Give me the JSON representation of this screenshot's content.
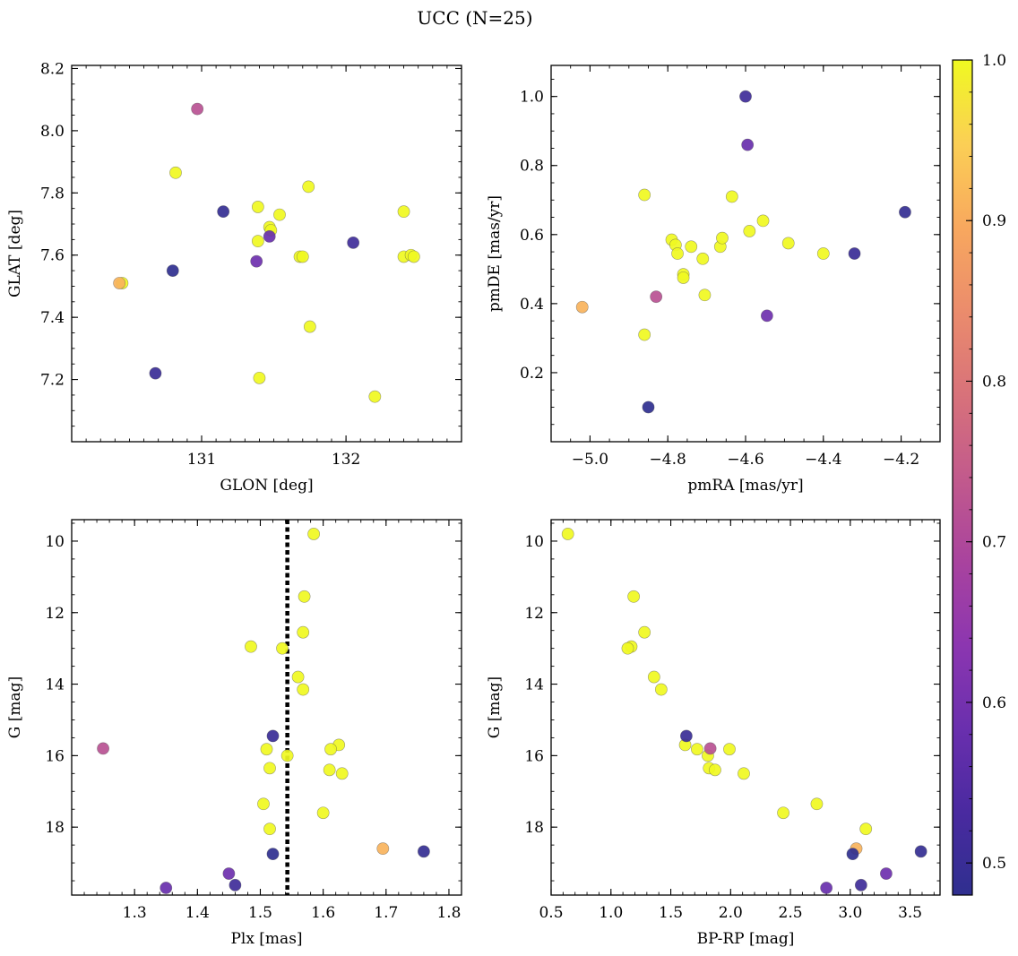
{
  "chart_data": {
    "type": "scatter",
    "title": "UCC (N=25)",
    "colorbar": {
      "colormap": "plasma",
      "range": [
        0.48,
        1.0
      ],
      "ticks": [
        0.5,
        0.6,
        0.7,
        0.8,
        0.9,
        1.0
      ],
      "tick_labels": [
        "0.5",
        "0.6",
        "0.7",
        "0.8",
        "0.9",
        "1.0"
      ]
    },
    "points": [
      {
        "glon": 130.97,
        "glat": 8.07,
        "pmra": -4.83,
        "pmde": 0.42,
        "plx": 1.25,
        "g": 15.8,
        "bprp": 1.83,
        "prob": 0.72
      },
      {
        "glon": 130.82,
        "glat": 7.865,
        "pmra": -4.86,
        "pmde": 0.715,
        "plx": 1.585,
        "g": 9.8,
        "bprp": 0.64,
        "prob": 1.0
      },
      {
        "glon": 131.15,
        "glat": 7.74,
        "pmra": -4.19,
        "pmde": 0.665,
        "plx": 1.76,
        "g": 18.68,
        "bprp": 3.59,
        "prob": 0.49
      },
      {
        "glon": 130.8,
        "glat": 7.55,
        "pmra": -4.85,
        "pmde": 0.1,
        "plx": 1.52,
        "g": 18.75,
        "bprp": 3.02,
        "prob": 0.48
      },
      {
        "glon": 130.68,
        "glat": 7.22,
        "pmra": -4.32,
        "pmde": 0.545,
        "plx": 1.52,
        "g": 15.45,
        "bprp": 1.63,
        "prob": 0.5
      },
      {
        "glon": 132.05,
        "glat": 7.64,
        "pmra": -4.6,
        "pmde": 1.0,
        "plx": 1.46,
        "g": 19.62,
        "bprp": 3.09,
        "prob": 0.51
      },
      {
        "glon": 131.47,
        "glat": 7.66,
        "pmra": -4.595,
        "pmde": 0.86,
        "plx": 1.35,
        "g": 19.7,
        "bprp": 2.8,
        "prob": 0.58
      },
      {
        "glon": 131.38,
        "glat": 7.58,
        "pmra": -4.545,
        "pmde": 0.365,
        "plx": 1.45,
        "g": 19.3,
        "bprp": 3.3,
        "prob": 0.59
      },
      {
        "glon": 130.43,
        "glat": 7.51,
        "pmra": -5.02,
        "pmde": 0.39,
        "plx": 1.695,
        "g": 18.6,
        "bprp": 3.05,
        "prob": 0.91
      },
      {
        "glon": 131.39,
        "glat": 7.755,
        "pmra": -4.79,
        "pmde": 0.585,
        "plx": 1.57,
        "g": 11.55,
        "bprp": 1.19,
        "prob": 1.0
      },
      {
        "glon": 131.47,
        "glat": 7.69,
        "pmra": -4.78,
        "pmde": 0.57,
        "plx": 1.485,
        "g": 12.95,
        "bprp": 1.17,
        "prob": 1.0
      },
      {
        "glon": 131.48,
        "glat": 7.68,
        "pmra": -4.775,
        "pmde": 0.545,
        "plx": 1.568,
        "g": 12.55,
        "bprp": 1.28,
        "prob": 1.0
      },
      {
        "glon": 131.54,
        "glat": 7.73,
        "pmra": -4.76,
        "pmde": 0.485,
        "plx": 1.535,
        "g": 13.0,
        "bprp": 1.14,
        "prob": 1.0
      },
      {
        "glon": 131.39,
        "glat": 7.645,
        "pmra": -4.76,
        "pmde": 0.475,
        "plx": 1.56,
        "g": 13.8,
        "bprp": 1.36,
        "prob": 1.0
      },
      {
        "glon": 131.74,
        "glat": 7.82,
        "pmra": -4.74,
        "pmde": 0.565,
        "plx": 1.568,
        "g": 14.15,
        "bprp": 1.42,
        "prob": 1.0
      },
      {
        "glon": 131.68,
        "glat": 7.595,
        "pmra": -4.71,
        "pmde": 0.53,
        "plx": 1.625,
        "g": 15.7,
        "bprp": 1.62,
        "prob": 1.0
      },
      {
        "glon": 131.7,
        "glat": 7.595,
        "pmra": -4.705,
        "pmde": 0.425,
        "plx": 1.612,
        "g": 15.82,
        "bprp": 1.72,
        "prob": 1.0
      },
      {
        "glon": 131.75,
        "glat": 7.37,
        "pmra": -4.665,
        "pmde": 0.565,
        "plx": 1.51,
        "g": 15.82,
        "bprp": 1.99,
        "prob": 1.0
      },
      {
        "glon": 131.4,
        "glat": 7.205,
        "pmra": -4.66,
        "pmde": 0.59,
        "plx": 1.543,
        "g": 16.0,
        "bprp": 1.81,
        "prob": 1.0
      },
      {
        "glon": 132.2,
        "glat": 7.145,
        "pmra": -4.635,
        "pmde": 0.71,
        "plx": 1.515,
        "g": 16.35,
        "bprp": 1.82,
        "prob": 1.0
      },
      {
        "glon": 132.4,
        "glat": 7.74,
        "pmra": -4.59,
        "pmde": 0.61,
        "plx": 1.61,
        "g": 16.4,
        "bprp": 1.87,
        "prob": 1.0
      },
      {
        "glon": 132.4,
        "glat": 7.595,
        "pmra": -4.555,
        "pmde": 0.64,
        "plx": 1.63,
        "g": 16.5,
        "bprp": 2.11,
        "prob": 1.0
      },
      {
        "glon": 132.45,
        "glat": 7.6,
        "pmra": -4.49,
        "pmde": 0.575,
        "plx": 1.505,
        "g": 17.35,
        "bprp": 2.72,
        "prob": 1.0
      },
      {
        "glon": 132.47,
        "glat": 7.595,
        "pmra": -4.4,
        "pmde": 0.545,
        "plx": 1.6,
        "g": 17.6,
        "bprp": 2.44,
        "prob": 1.0
      },
      {
        "glon": 130.45,
        "glat": 7.51,
        "pmra": -4.86,
        "pmde": 0.31,
        "plx": 1.515,
        "g": 18.05,
        "bprp": 3.13,
        "prob": 1.0
      }
    ],
    "panels": [
      {
        "name": "glon-glat",
        "x": "glon",
        "y": "glat",
        "xlabel": "GLON [deg]",
        "ylabel": "GLAT [deg]",
        "xlim": [
          130.1,
          132.8
        ],
        "ylim": [
          7.0,
          8.21
        ],
        "xticks": [
          131,
          132
        ],
        "xtick_labels": [
          "131",
          "132"
        ],
        "yticks": [
          7.2,
          7.4,
          7.6,
          7.8,
          8.0,
          8.2
        ],
        "ytick_labels": [
          "7.2",
          "7.4",
          "7.6",
          "7.8",
          "8.0",
          "8.2"
        ],
        "xminor": 0.1,
        "yminor": 0.05,
        "yinvert": false
      },
      {
        "name": "pmra-pmde",
        "x": "pmra",
        "y": "pmde",
        "xlabel": "pmRA [mas/yr]",
        "ylabel": "pmDE [mas/yr]",
        "xlim": [
          -5.1,
          -4.1
        ],
        "ylim": [
          0.0,
          1.09
        ],
        "xticks": [
          -5.0,
          -4.8,
          -4.6,
          -4.4,
          -4.2
        ],
        "xtick_labels": [
          "−5.0",
          "−4.8",
          "−4.6",
          "−4.4",
          "−4.2"
        ],
        "yticks": [
          0.2,
          0.4,
          0.6,
          0.8,
          1.0
        ],
        "ytick_labels": [
          "0.2",
          "0.4",
          "0.6",
          "0.8",
          "1.0"
        ],
        "xminor": 0.05,
        "yminor": 0.05,
        "yinvert": false
      },
      {
        "name": "plx-g",
        "x": "plx",
        "y": "g",
        "xlabel": "Plx [mas]",
        "ylabel": "G [mag]",
        "xlim": [
          1.2,
          1.82
        ],
        "ylim": [
          19.9,
          9.4
        ],
        "xticks": [
          1.3,
          1.4,
          1.5,
          1.6,
          1.7,
          1.8
        ],
        "xtick_labels": [
          "1.3",
          "1.4",
          "1.5",
          "1.6",
          "1.7",
          "1.8"
        ],
        "yticks": [
          10,
          12,
          14,
          16,
          18
        ],
        "ytick_labels": [
          "10",
          "12",
          "14",
          "16",
          "18"
        ],
        "xminor": 0.02,
        "yminor": 0.5,
        "yinvert": true,
        "vline": 1.543
      },
      {
        "name": "bprp-g",
        "x": "bprp",
        "y": "g",
        "xlabel": "BP-RP [mag]",
        "ylabel": "G [mag]",
        "xlim": [
          0.5,
          3.75
        ],
        "ylim": [
          19.9,
          9.4
        ],
        "xticks": [
          0.5,
          1.0,
          1.5,
          2.0,
          2.5,
          3.0,
          3.5
        ],
        "xtick_labels": [
          "0.5",
          "1.0",
          "1.5",
          "2.0",
          "2.5",
          "3.0",
          "3.5"
        ],
        "yticks": [
          10,
          12,
          14,
          16,
          18
        ],
        "ytick_labels": [
          "10",
          "12",
          "14",
          "16",
          "18"
        ],
        "xminor": 0.1,
        "yminor": 0.5,
        "yinvert": true
      }
    ]
  }
}
